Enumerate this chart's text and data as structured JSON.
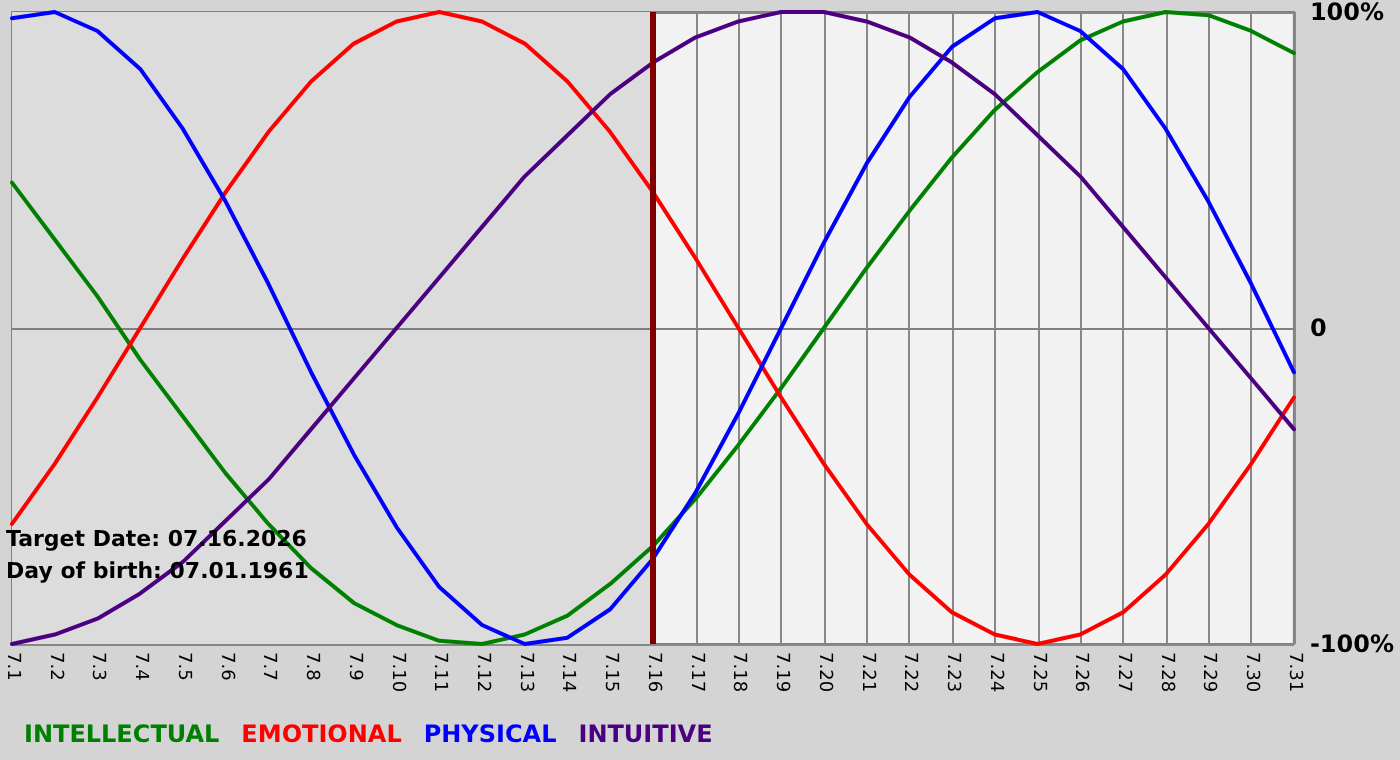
{
  "chart_data": {
    "type": "line",
    "categories": [
      "7.1",
      "7.2",
      "7.3",
      "7.4",
      "7.5",
      "7.6",
      "7.7",
      "7.8",
      "7.9",
      "7.10",
      "7.11",
      "7.12",
      "7.13",
      "7.14",
      "7.15",
      "7.16",
      "7.17",
      "7.18",
      "7.19",
      "7.20",
      "7.21",
      "7.22",
      "7.23",
      "7.24",
      "7.25",
      "7.26",
      "7.27",
      "7.28",
      "7.29",
      "7.30",
      "7.31"
    ],
    "series": [
      {
        "name": "INTELLECTUAL",
        "color": "#008000",
        "values": [
          46,
          28,
          10,
          -10,
          -28,
          -46,
          -62,
          -76,
          -87,
          -94,
          -99,
          -100,
          -97,
          -91,
          -81,
          -69,
          -54,
          -37,
          -19,
          0,
          19,
          37,
          54,
          69,
          81,
          91,
          97,
          100,
          99,
          94,
          87
        ]
      },
      {
        "name": "EMOTIONAL",
        "color": "#ff0000",
        "values": [
          -62,
          -43,
          -22,
          0,
          22,
          43,
          62,
          78,
          90,
          97,
          100,
          97,
          90,
          78,
          62,
          43,
          22,
          0,
          -22,
          -43,
          -62,
          -78,
          -90,
          -97,
          -100,
          -97,
          -90,
          -78,
          -62,
          -43,
          -22
        ]
      },
      {
        "name": "PHYSICAL",
        "color": "#0000ff",
        "values": [
          98,
          100,
          94,
          82,
          63,
          40,
          14,
          -14,
          -40,
          -63,
          -82,
          -94,
          -100,
          -98,
          -89,
          -73,
          -52,
          -27,
          0,
          27,
          52,
          73,
          89,
          98,
          100,
          94,
          82,
          63,
          40,
          14,
          -14
        ]
      },
      {
        "name": "INTUITIVE",
        "color": "#4b0082",
        "values": [
          -100,
          -97,
          -92,
          -84,
          -74,
          -61,
          -48,
          -32,
          -16,
          0,
          16,
          32,
          48,
          61,
          74,
          84,
          92,
          97,
          100,
          100,
          97,
          92,
          84,
          74,
          61,
          48,
          32,
          16,
          0,
          -16,
          -32
        ]
      }
    ],
    "ylim": [
      -100,
      100
    ],
    "yticks": [
      {
        "value": -100,
        "label": "-100%"
      },
      0,
      {
        "value": 100,
        "label": "100%"
      }
    ],
    "grid": true,
    "legend": "bottom left",
    "marker": "none",
    "line_style": "solid",
    "ref_lines": [
      {
        "axis": "x",
        "value": "7.16",
        "color": "#800000"
      }
    ],
    "bands": [
      {
        "axis": "x",
        "from": "7.1",
        "to": "7.16",
        "color": "#dcdcdc"
      }
    ],
    "annotations": [
      "Target Date: 07.16.2026",
      "Day of birth: 07.01.1961"
    ]
  }
}
